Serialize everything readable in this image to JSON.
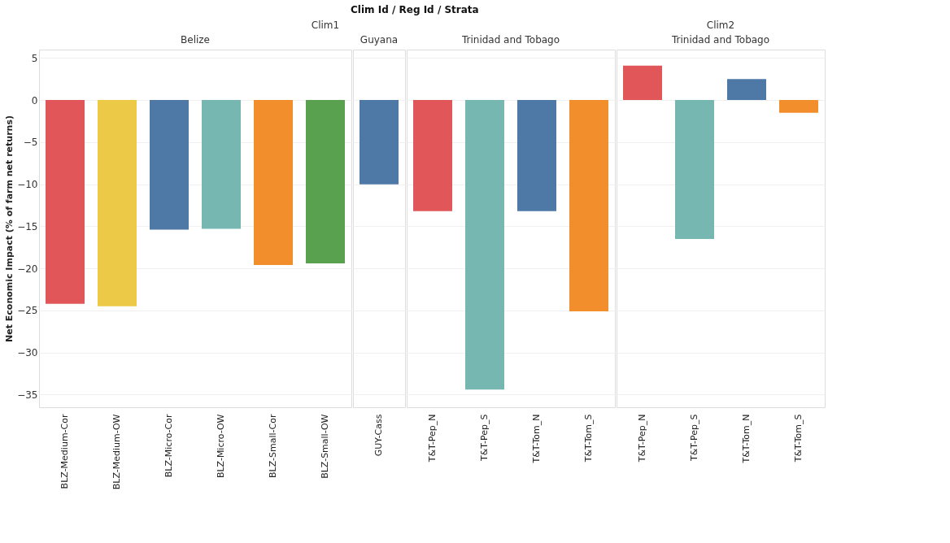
{
  "chart_data": [
    {
      "type": "bar",
      "title": "Belize",
      "subtitle": "Clim1",
      "annotations": [
        "Clim Id / Reg Id / Strata"
      ],
      "ylabel": "Net Economic Impact (% of farm net returns)",
      "categories": [
        "BLZ-Medium-Cor",
        "BLZ-Medium-OW",
        "BLZ-Micro-Cor",
        "BLZ-Micro-OW",
        "BLZ-Small-Cor",
        "BLZ-Small-OW"
      ],
      "values": [
        -24.2,
        -24.5,
        -15.4,
        -15.3,
        -19.6,
        -19.4
      ],
      "colors": [
        "#e15759",
        "#edc948",
        "#4e79a7",
        "#76b7b2",
        "#f28e2b",
        "#59a14f"
      ],
      "ylim": [
        -36.5,
        6
      ],
      "yticks": [
        5,
        0,
        -5,
        -10,
        -15,
        -20,
        -25,
        -30,
        -35
      ],
      "grid": "y"
    },
    {
      "type": "bar",
      "title": "Guyana",
      "categories": [
        "GUY-Cass"
      ],
      "values": [
        -10.0
      ],
      "colors": [
        "#4e79a7"
      ],
      "ylim": [
        -36.5,
        6
      ],
      "yticks": [
        5,
        0,
        -5,
        -10,
        -15,
        -20,
        -25,
        -30,
        -35
      ],
      "grid": "y",
      "tick_labels": "x"
    },
    {
      "type": "bar",
      "title": "Trinidad and Tobago",
      "categories": [
        "T&T-Pep_N",
        "T&T-Pep_S",
        "T&T-Tom_N",
        "T&T-Tom_S"
      ],
      "values": [
        -13.2,
        -34.4,
        -13.2,
        -25.1
      ],
      "colors": [
        "#e15759",
        "#76b7b2",
        "#4e79a7",
        "#f28e2b"
      ],
      "ylim": [
        -36.5,
        6
      ],
      "yticks": [
        5,
        0,
        -5,
        -10,
        -15,
        -20,
        -25,
        -30,
        -35
      ],
      "grid": "y",
      "tick_labels": "x"
    },
    {
      "type": "bar",
      "title": "Trinidad and Tobago",
      "subtitle": "Clim2",
      "categories": [
        "T&T-Pep_N",
        "T&T-Pep_S",
        "T&T-Tom_N",
        "T&T-Tom_S"
      ],
      "values": [
        4.1,
        -16.5,
        2.5,
        -1.5
      ],
      "colors": [
        "#e15759",
        "#76b7b2",
        "#4e79a7",
        "#f28e2b"
      ],
      "ylim": [
        -36.5,
        6
      ],
      "yticks": [
        5,
        0,
        -5,
        -10,
        -15,
        -20,
        -25,
        -30,
        -35
      ],
      "grid": "y",
      "tick_labels": "x"
    }
  ]
}
